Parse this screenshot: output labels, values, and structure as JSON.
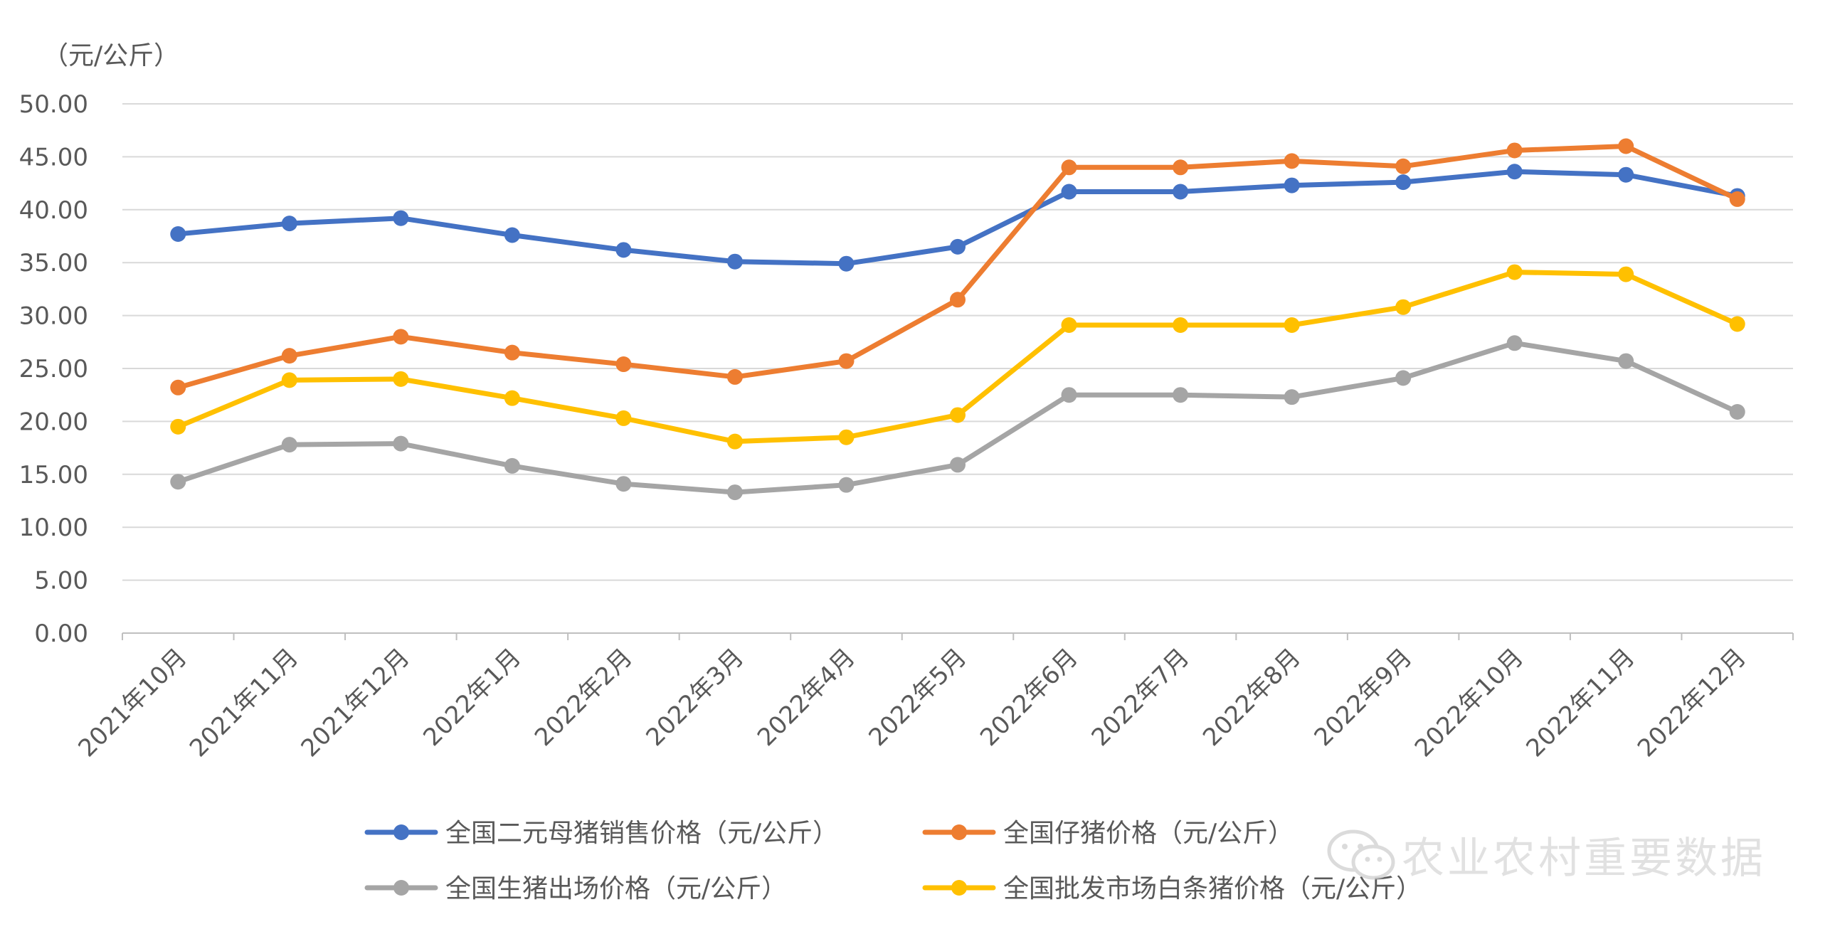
{
  "chart_data": {
    "type": "line",
    "unit_label": "（元/公斤）",
    "categories": [
      "2021年10月",
      "2021年11月",
      "2021年12月",
      "2022年1月",
      "2022年2月",
      "2022年3月",
      "2022年4月",
      "2022年5月",
      "2022年6月",
      "2022年7月",
      "2022年8月",
      "2022年9月",
      "2022年10月",
      "2022年11月",
      "2022年12月"
    ],
    "y_ticks": [
      "0.00",
      "5.00",
      "10.00",
      "15.00",
      "20.00",
      "25.00",
      "30.00",
      "35.00",
      "40.00",
      "45.00",
      "50.00"
    ],
    "ylim": [
      0,
      50
    ],
    "grid": true,
    "legend_position": "bottom",
    "series": [
      {
        "name": "全国二元母猪销售价格（元/公斤）",
        "color": "#4472C4",
        "values": [
          37.7,
          38.7,
          39.2,
          37.6,
          36.2,
          35.1,
          34.9,
          36.5,
          41.7,
          41.7,
          42.3,
          42.6,
          43.6,
          43.3,
          41.3
        ]
      },
      {
        "name": "全国仔猪价格（元/公斤）",
        "color": "#ED7D31",
        "values": [
          23.2,
          26.2,
          28.0,
          26.5,
          25.4,
          24.2,
          25.7,
          31.5,
          44.0,
          44.0,
          44.6,
          44.1,
          45.6,
          46.0,
          41.0
        ]
      },
      {
        "name": "全国生猪出场价格（元/公斤）",
        "color": "#A5A5A5",
        "values": [
          14.3,
          17.8,
          17.9,
          15.8,
          14.1,
          13.3,
          14.0,
          15.9,
          22.5,
          22.5,
          22.3,
          24.1,
          27.4,
          25.7,
          20.9
        ]
      },
      {
        "name": "全国批发市场白条猪价格（元/公斤）",
        "color": "#FFC000",
        "values": [
          19.5,
          23.9,
          24.0,
          22.2,
          20.3,
          18.1,
          18.5,
          20.6,
          29.1,
          29.1,
          29.1,
          30.8,
          34.1,
          33.9,
          29.2
        ]
      }
    ]
  },
  "watermark": {
    "text": "农业农村重要数据",
    "icon": "wechat-icon"
  }
}
